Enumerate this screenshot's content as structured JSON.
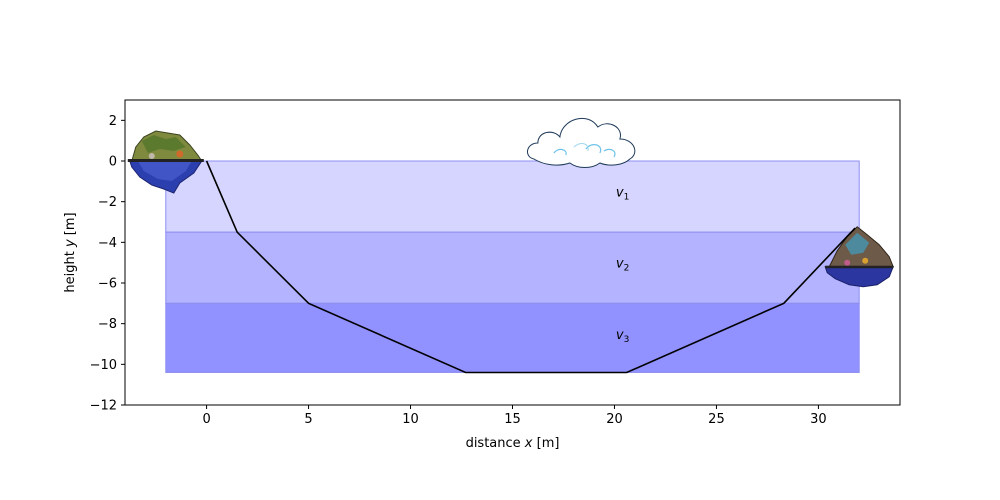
{
  "chart_data": {
    "type": "line",
    "title": "",
    "xlabel_text": "distance ",
    "xlabel_var": "x",
    "xlabel_unit": " [m]",
    "ylabel_text": "height ",
    "ylabel_var": "y",
    "ylabel_unit": " [m]",
    "xlim": [
      -4,
      34
    ],
    "ylim": [
      -12,
      3
    ],
    "xticks": [
      0,
      5,
      10,
      15,
      20,
      25,
      30
    ],
    "yticks": [
      2,
      0,
      -2,
      -4,
      -6,
      -8,
      -10,
      -12
    ],
    "grid": false,
    "layers": [
      {
        "name": "v",
        "subscript": "1",
        "x_start": -2,
        "x_end": 32,
        "y_top": 0,
        "y_bottom": -3.5,
        "color": "#d5d5ff",
        "label_x": 20.4,
        "label_y": -1.55
      },
      {
        "name": "v",
        "subscript": "2",
        "x_start": -2,
        "x_end": 32,
        "y_top": -3.5,
        "y_bottom": -7,
        "color": "#b3b3ff",
        "label_x": 20.4,
        "label_y": -5.05
      },
      {
        "name": "v",
        "subscript": "3",
        "x_start": -2,
        "x_end": 32,
        "y_top": -7,
        "y_bottom": -10.4,
        "color": "#9191ff",
        "label_x": 20.4,
        "label_y": -8.55
      }
    ],
    "series": [
      {
        "color": "#000000",
        "x": [
          0,
          1.5,
          5,
          12.7,
          20.6,
          28.3,
          31.8
        ],
        "y": [
          0,
          -3.5,
          -7,
          -10.4,
          -10.4,
          -7,
          -3.3
        ]
      }
    ],
    "decorations": [
      {
        "kind": "island-left-icon",
        "x": -2,
        "y": 0
      },
      {
        "kind": "island-right-icon",
        "x": 32,
        "y": -5.2
      },
      {
        "kind": "cloud-icon",
        "x": 18.5,
        "y": 0
      }
    ]
  }
}
